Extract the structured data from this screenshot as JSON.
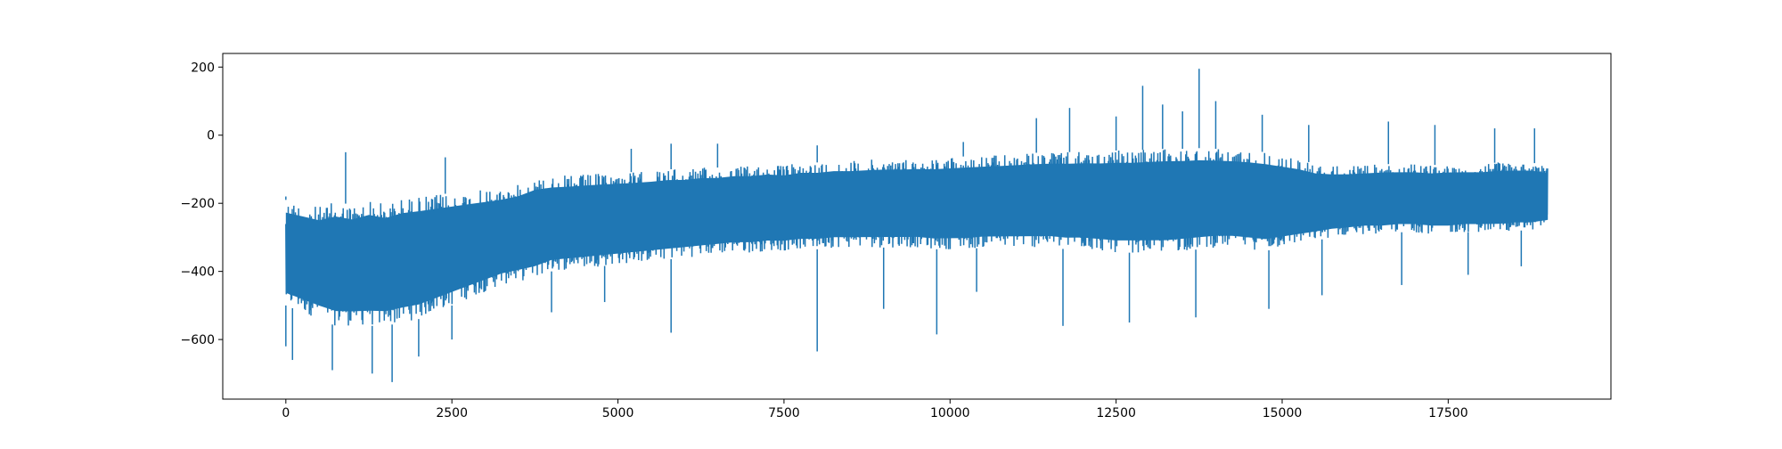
{
  "chart_data": {
    "type": "line",
    "title": "",
    "xlabel": "",
    "ylabel": "",
    "xlim": [
      -950,
      19950
    ],
    "ylim": [
      -775,
      240
    ],
    "x_ticks": [
      0,
      2500,
      5000,
      7500,
      10000,
      12500,
      15000,
      17500
    ],
    "x_tick_labels": [
      "0",
      "2500",
      "5000",
      "7500",
      "10000",
      "12500",
      "15000",
      "17500"
    ],
    "y_ticks": [
      200,
      0,
      -200,
      -400,
      -600
    ],
    "y_tick_labels": [
      "200",
      "0",
      "−200",
      "−400",
      "−600"
    ],
    "grid": false,
    "legend": "none",
    "series": [
      {
        "color": "#1f77b4",
        "x": [
          0,
          250,
          500,
          750,
          1000,
          1250,
          1500,
          1750,
          2000,
          2250,
          2500,
          2750,
          3000,
          3250,
          3500,
          3750,
          4000,
          4250,
          4500,
          4750,
          5000,
          5250,
          5500,
          5750,
          6000,
          6250,
          6500,
          6750,
          7000,
          7250,
          7500,
          7750,
          8000,
          8250,
          8500,
          8750,
          9000,
          9250,
          9500,
          9750,
          10000,
          10250,
          10500,
          10750,
          11000,
          11250,
          11500,
          11750,
          12000,
          12250,
          12500,
          12750,
          13000,
          13250,
          13500,
          13750,
          14000,
          14250,
          14500,
          14750,
          15000,
          15250,
          15500,
          15750,
          16000,
          16250,
          16500,
          16750,
          17000,
          17250,
          17500,
          17750,
          18000,
          18250,
          18500,
          18750,
          19000
        ],
        "upper": [
          -190,
          -200,
          -210,
          -195,
          -205,
          -190,
          -200,
          -185,
          -180,
          -175,
          -170,
          -165,
          -160,
          -155,
          -145,
          -125,
          -120,
          -118,
          -115,
          -112,
          -110,
          -108,
          -105,
          -100,
          -100,
          -95,
          -95,
          -90,
          -90,
          -85,
          -88,
          -80,
          -80,
          -75,
          -75,
          -72,
          -70,
          -70,
          -68,
          -68,
          -65,
          -62,
          -60,
          -58,
          -55,
          -52,
          -50,
          -50,
          -48,
          -48,
          -45,
          -45,
          -42,
          -40,
          -40,
          -38,
          -40,
          -42,
          -45,
          -50,
          -60,
          -70,
          -85,
          -90,
          -90,
          -88,
          -85,
          -85,
          -85,
          -88,
          -85,
          -85,
          -85,
          -80,
          -80,
          -80,
          -90
        ],
        "lower": [
          -500,
          -520,
          -540,
          -560,
          -560,
          -560,
          -560,
          -550,
          -540,
          -520,
          -500,
          -480,
          -460,
          -440,
          -430,
          -420,
          -400,
          -395,
          -390,
          -385,
          -380,
          -375,
          -370,
          -365,
          -360,
          -355,
          -350,
          -345,
          -345,
          -340,
          -340,
          -335,
          -335,
          -330,
          -330,
          -330,
          -330,
          -330,
          -330,
          -335,
          -335,
          -335,
          -330,
          -330,
          -330,
          -330,
          -330,
          -335,
          -335,
          -340,
          -345,
          -345,
          -345,
          -345,
          -340,
          -335,
          -330,
          -330,
          -335,
          -340,
          -330,
          -320,
          -310,
          -300,
          -295,
          -290,
          -290,
          -285,
          -285,
          -290,
          -290,
          -285,
          -285,
          -285,
          -280,
          -280,
          -270
        ],
        "spikes_up": [
          [
            0,
            -180
          ],
          [
            900,
            -50
          ],
          [
            2400,
            -65
          ],
          [
            5200,
            -40
          ],
          [
            5800,
            -25
          ],
          [
            6500,
            -25
          ],
          [
            8000,
            -30
          ],
          [
            10200,
            -20
          ],
          [
            11300,
            50
          ],
          [
            11800,
            80
          ],
          [
            12500,
            55
          ],
          [
            12900,
            145
          ],
          [
            13200,
            90
          ],
          [
            13500,
            70
          ],
          [
            13750,
            195
          ],
          [
            14000,
            100
          ],
          [
            14700,
            60
          ],
          [
            15400,
            30
          ],
          [
            16600,
            40
          ],
          [
            17300,
            30
          ],
          [
            18200,
            20
          ],
          [
            18800,
            20
          ]
        ],
        "spikes_down": [
          [
            0,
            -620
          ],
          [
            100,
            -660
          ],
          [
            700,
            -690
          ],
          [
            1300,
            -700
          ],
          [
            1600,
            -725
          ],
          [
            2000,
            -650
          ],
          [
            2500,
            -600
          ],
          [
            4000,
            -520
          ],
          [
            4800,
            -490
          ],
          [
            5800,
            -580
          ],
          [
            8000,
            -635
          ],
          [
            9000,
            -510
          ],
          [
            9800,
            -585
          ],
          [
            10400,
            -460
          ],
          [
            11700,
            -560
          ],
          [
            12700,
            -550
          ],
          [
            13700,
            -535
          ],
          [
            14800,
            -510
          ],
          [
            15600,
            -470
          ],
          [
            16800,
            -440
          ],
          [
            17800,
            -410
          ],
          [
            18600,
            -385
          ]
        ]
      }
    ]
  }
}
